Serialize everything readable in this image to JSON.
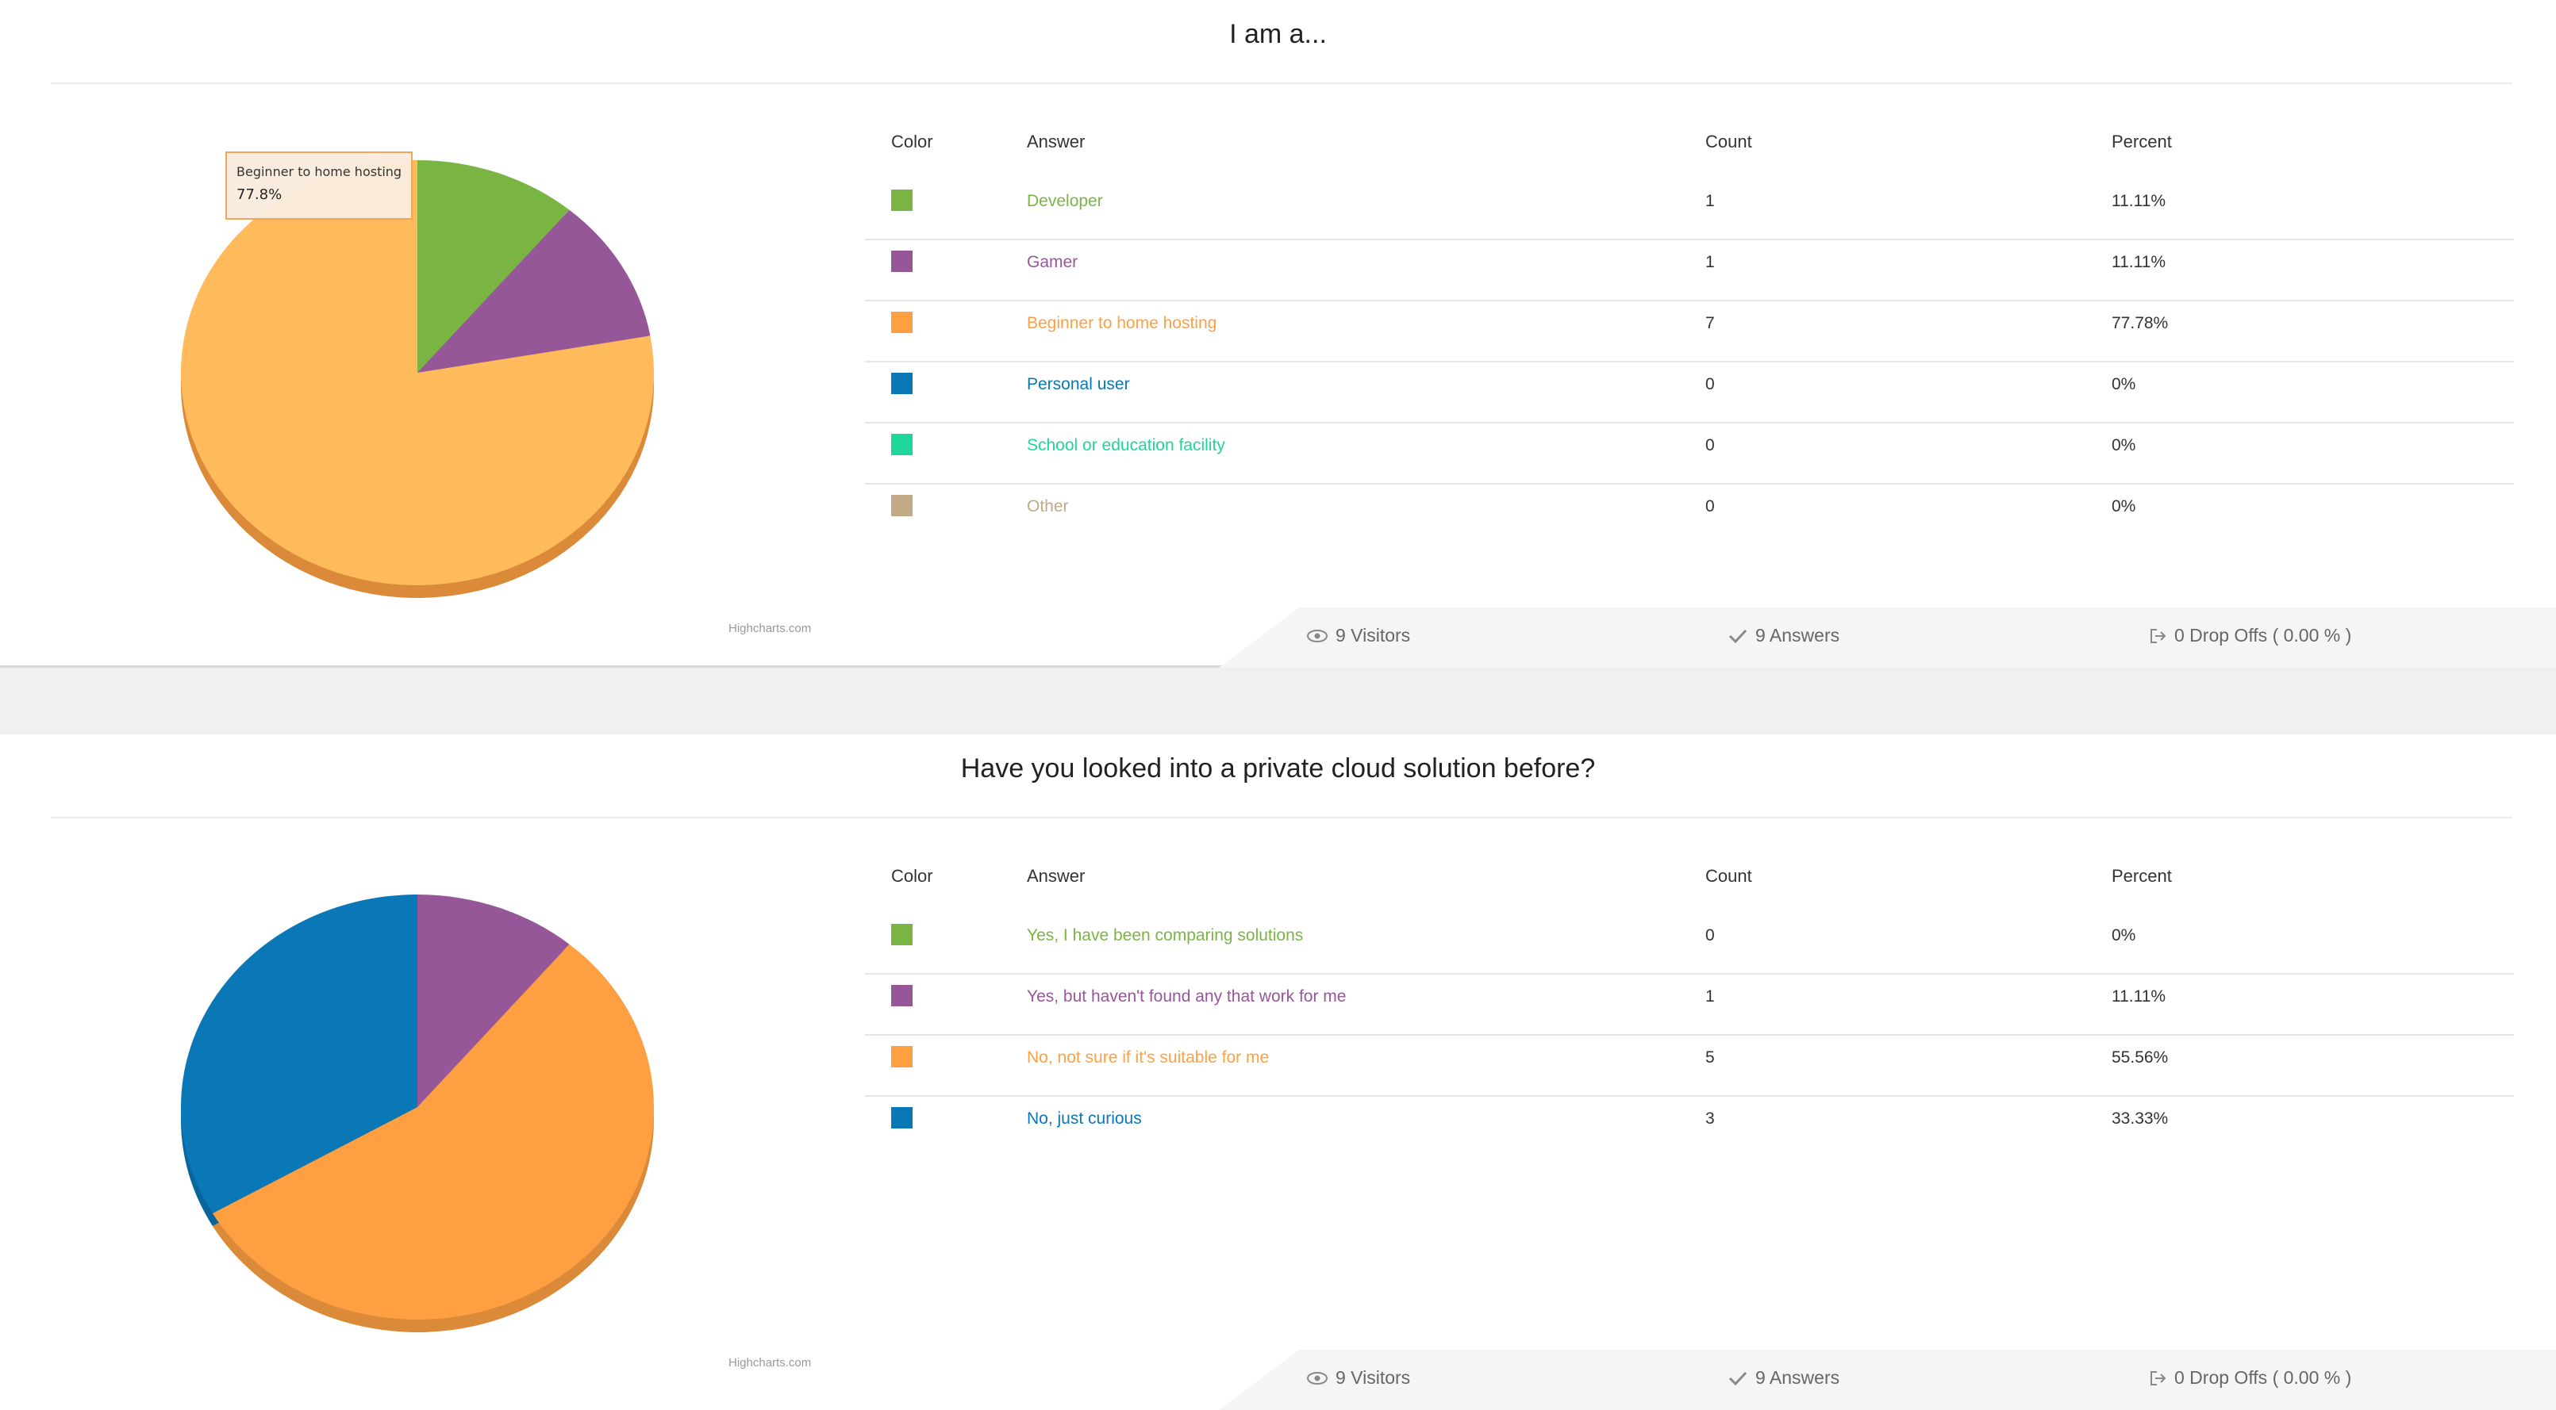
{
  "table_headers": {
    "color": "Color",
    "answer": "Answer",
    "count": "Count",
    "percent": "Percent"
  },
  "credit": "Highcharts.com",
  "chart_data": [
    {
      "type": "pie",
      "title": "I am a...",
      "series": [
        {
          "name": "Developer",
          "count": 1,
          "percent": "11.11%",
          "value": 11.11,
          "color": "#7ab543"
        },
        {
          "name": "Gamer",
          "count": 1,
          "percent": "11.11%",
          "value": 11.11,
          "color": "#965799"
        },
        {
          "name": "Beginner to home hosting",
          "count": 7,
          "percent": "77.78%",
          "value": 77.78,
          "color": "#fea042"
        },
        {
          "name": "Personal user",
          "count": 0,
          "percent": "0%",
          "value": 0,
          "color": "#0a77b7"
        },
        {
          "name": "School or education facility",
          "count": 0,
          "percent": "0%",
          "value": 0,
          "color": "#1ed69a"
        },
        {
          "name": "Other",
          "count": 0,
          "percent": "0%",
          "value": 0,
          "color": "#c2a987"
        }
      ],
      "tooltip": {
        "name": "Beginner to home hosting",
        "value": "77.8%"
      },
      "stats": {
        "visitors": "9 Visitors",
        "answers": "9 Answers",
        "dropoffs": "0 Drop Offs ( 0.00 % )"
      }
    },
    {
      "type": "pie",
      "title": "Have you looked into a private cloud solution before?",
      "series": [
        {
          "name": "Yes, I have been comparing solutions",
          "count": 0,
          "percent": "0%",
          "value": 0,
          "color": "#7ab543"
        },
        {
          "name": "Yes, but haven't found any that work for me",
          "count": 1,
          "percent": "11.11%",
          "value": 11.11,
          "color": "#965799"
        },
        {
          "name": "No, not sure if it's suitable for me",
          "count": 5,
          "percent": "55.56%",
          "value": 55.56,
          "color": "#fea042"
        },
        {
          "name": "No, just curious",
          "count": 3,
          "percent": "33.33%",
          "value": 33.33,
          "color": "#0a77b7"
        }
      ],
      "stats": {
        "visitors": "9 Visitors",
        "answers": "9 Answers",
        "dropoffs": "0 Drop Offs ( 0.00 % )"
      }
    }
  ]
}
